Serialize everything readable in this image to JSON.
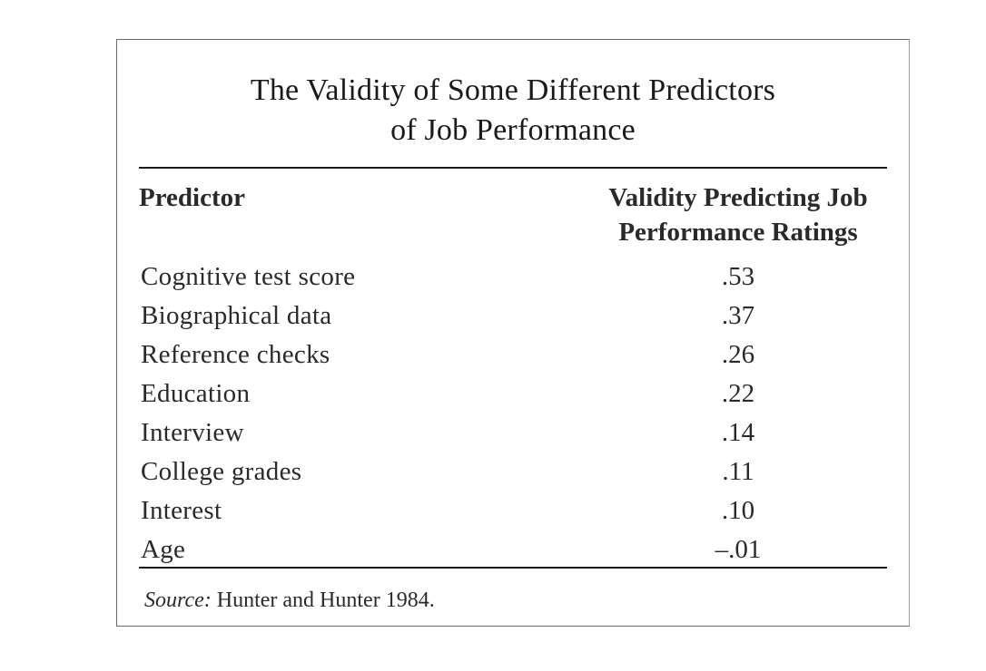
{
  "table": {
    "title_line1": "The Validity of Some Different Predictors",
    "title_line2": "of Job Performance",
    "header_predictor": "Predictor",
    "header_validity_line1": "Validity Predicting Job",
    "header_validity_line2": "Performance Ratings",
    "rows": [
      {
        "predictor": "Cognitive test score",
        "validity": ".53"
      },
      {
        "predictor": "Biographical data",
        "validity": ".37"
      },
      {
        "predictor": "Reference checks",
        "validity": ".26"
      },
      {
        "predictor": "Education",
        "validity": ".22"
      },
      {
        "predictor": "Interview",
        "validity": ".14"
      },
      {
        "predictor": "College grades",
        "validity": ".11"
      },
      {
        "predictor": "Interest",
        "validity": ".10"
      },
      {
        "predictor": "Age",
        "validity": "–.01"
      }
    ],
    "source_label": "Source:",
    "source_text": "Hunter and Hunter 1984."
  }
}
